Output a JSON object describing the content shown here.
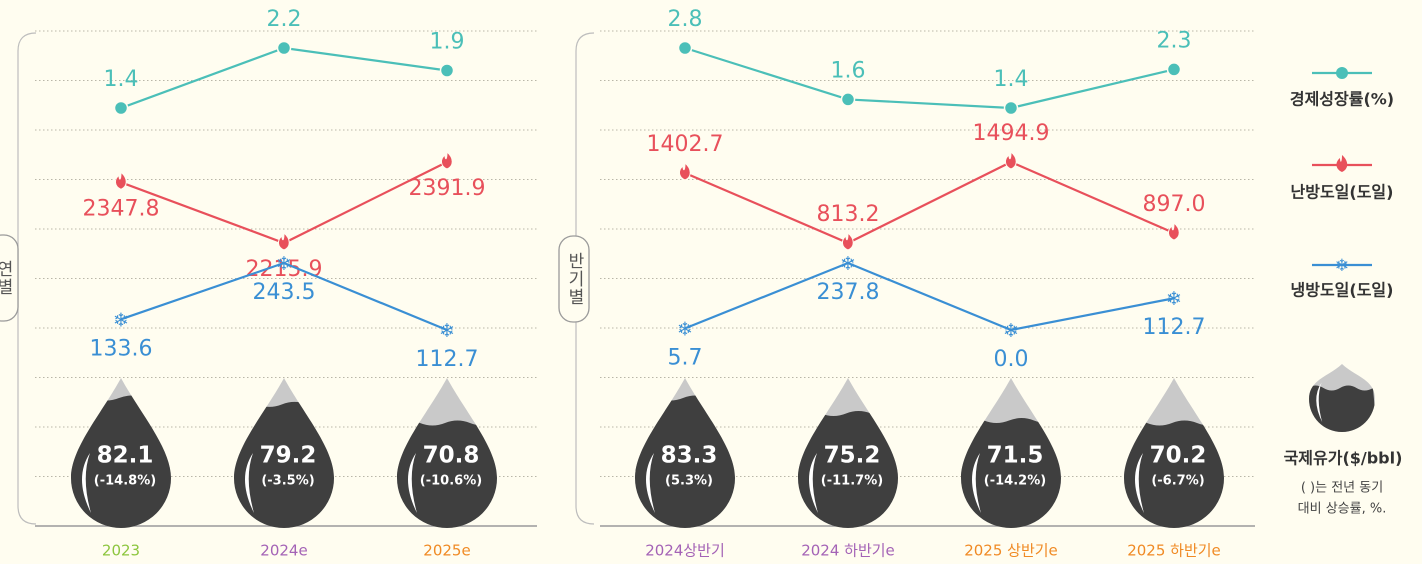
{
  "chart_data": [
    {
      "type": "line",
      "label": "연별",
      "categories": [
        "2023",
        "2024e",
        "2025e"
      ],
      "category_colors": [
        "#8dc63f",
        "#a463b6",
        "#f08a24"
      ],
      "series": [
        {
          "name": "경제성장률(%)",
          "color": "#4bbfb8",
          "marker": "circle",
          "values": [
            1.4,
            2.2,
            1.9
          ]
        },
        {
          "name": "난방도일(도일)",
          "color": "#e8505b",
          "marker": "flame",
          "values": [
            2347.8,
            2215.9,
            2391.9
          ]
        },
        {
          "name": "냉방도일(도일)",
          "color": "#3a8fd4",
          "marker": "snowflake",
          "values": [
            133.6,
            243.5,
            112.7
          ]
        },
        {
          "name": "국제유가($/bbl)",
          "color": "#3f3f3f",
          "marker": "drop",
          "values": [
            82.1,
            79.2,
            70.8
          ],
          "changes": [
            -14.8,
            -3.5,
            -10.6
          ],
          "change_labels": [
            "(-14.8%)",
            "(-3.5%)",
            "(-10.6%)"
          ]
        }
      ]
    },
    {
      "type": "line",
      "label": "반기별",
      "categories": [
        "2024상반기",
        "2024 하반기e",
        "2025 상반기e",
        "2025 하반기e"
      ],
      "category_colors": [
        "#a463b6",
        "#a463b6",
        "#f08a24",
        "#f08a24"
      ],
      "series": [
        {
          "color": "#4bbfb8",
          "marker": "circle",
          "values": [
            2.8,
            1.6,
            1.4,
            2.3
          ]
        },
        {
          "color": "#e8505b",
          "marker": "flame",
          "values": [
            1402.7,
            813.2,
            1494.9,
            897.0
          ],
          "value_labels": [
            "1402.7",
            "813.2",
            "1494.9",
            "897.0"
          ]
        },
        {
          "color": "#3a8fd4",
          "marker": "snowflake",
          "values": [
            5.7,
            237.8,
            0.0,
            112.7
          ],
          "value_labels": [
            "5.7",
            "237.8",
            "0.0",
            "112.7"
          ]
        },
        {
          "color": "#3f3f3f",
          "marker": "drop",
          "values": [
            83.3,
            75.2,
            71.5,
            70.2
          ],
          "changes": [
            5.3,
            -11.7,
            -14.2,
            -6.7
          ],
          "change_labels": [
            "(5.3%)",
            "(-11.7%)",
            "(-14.2%)",
            "(-6.7%)"
          ]
        }
      ]
    }
  ],
  "legend_note": [
    "( )는 전년 동기",
    "대비 상승률, %."
  ]
}
